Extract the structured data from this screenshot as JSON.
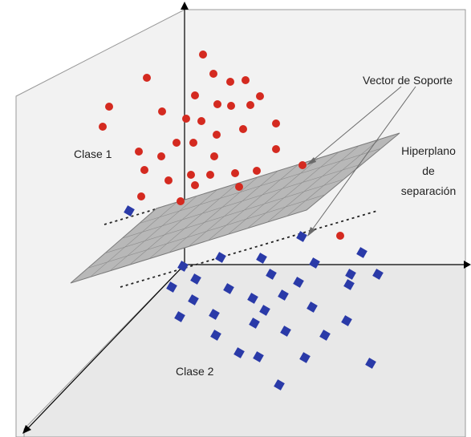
{
  "labels": {
    "class1": "Clase 1",
    "class2": "Clase 2",
    "support_vector": "Vector de Soporte",
    "hyperplane_line1": "Hiperplano",
    "hyperplane_line2": "de",
    "hyperplane_line3": "separación"
  },
  "colors": {
    "class1_marker": "#d42a20",
    "class2_marker": "#2a3aa8",
    "panel_fill": "#ececec",
    "panel_border": "#9a9a9a",
    "hyperplane_fill": "#b8b8b8",
    "hyperplane_grid": "#8c8c8c",
    "axis": "#000000"
  },
  "markers": {
    "class1_shape": "circle",
    "class2_shape": "square"
  }
}
